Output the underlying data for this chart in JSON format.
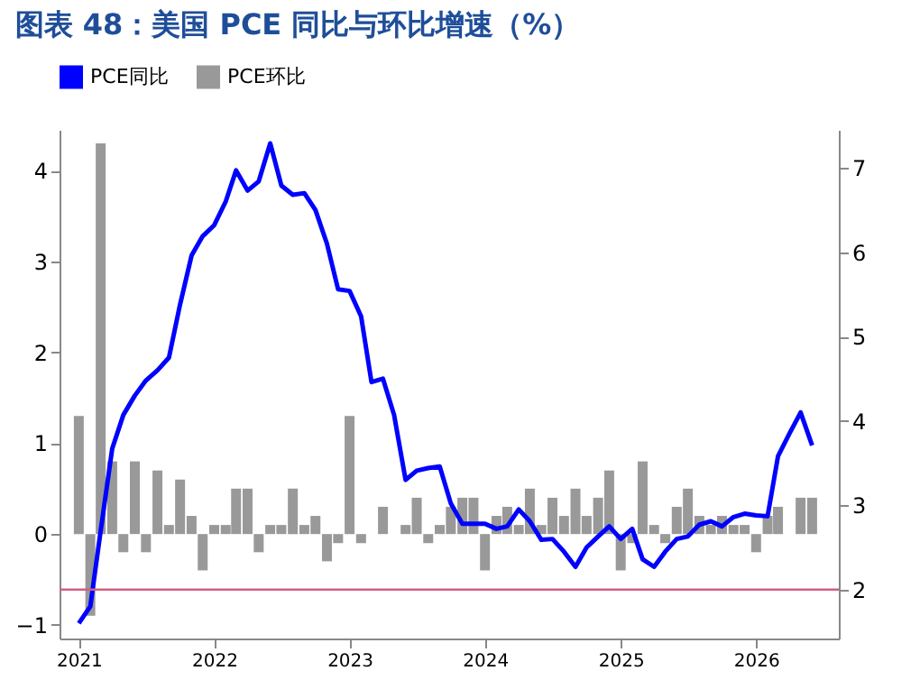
{
  "chart_data": {
    "type": "bar",
    "title": "图表 48：美国 PCE 同比与环比增速（%）",
    "x": [
      "2021-01",
      "2021-02",
      "2021-03",
      "2021-04",
      "2021-05",
      "2021-06",
      "2021-07",
      "2021-08",
      "2021-09",
      "2021-10",
      "2021-11",
      "2021-12",
      "2022-01",
      "2022-02",
      "2022-03",
      "2022-04",
      "2022-05",
      "2022-06",
      "2022-07",
      "2022-08",
      "2022-09",
      "2022-10",
      "2022-11",
      "2022-12",
      "2023-01",
      "2023-02",
      "2023-03",
      "2023-04",
      "2023-05",
      "2023-06",
      "2023-07",
      "2023-08",
      "2023-09",
      "2023-10",
      "2023-11",
      "2023-12",
      "2024-01",
      "2024-02",
      "2024-03",
      "2024-04",
      "2024-05",
      "2024-06",
      "2024-07",
      "2024-08",
      "2024-09",
      "2024-10",
      "2024-11",
      "2024-12",
      "2025-01",
      "2025-02",
      "2025-03",
      "2025-04",
      "2025-05",
      "2025-06",
      "2025-07",
      "2025-08",
      "2025-09",
      "2025-10",
      "2025-11",
      "2025-12",
      "2026-01",
      "2026-02",
      "2026-03",
      "2026-04",
      "2026-05",
      "2026-06"
    ],
    "series": [
      {
        "name": "PCE同比",
        "type": "line",
        "axis": "y2",
        "color": "#0000ff",
        "values": [
          1.6,
          1.8,
          2.7,
          3.67,
          4.07,
          4.3,
          4.48,
          4.6,
          4.75,
          5.38,
          5.96,
          6.19,
          6.32,
          6.6,
          6.97,
          6.73,
          6.84,
          7.29,
          6.79,
          6.68,
          6.7,
          6.5,
          6.1,
          5.56,
          5.54,
          5.24,
          4.46,
          4.5,
          4.07,
          3.3,
          3.41,
          3.44,
          3.46,
          3.02,
          2.78,
          2.78,
          2.78,
          2.72,
          2.75,
          2.95,
          2.81,
          2.59,
          2.6,
          2.45,
          2.27,
          2.5,
          2.63,
          2.75,
          2.6,
          2.72,
          2.36,
          2.27,
          2.45,
          2.6,
          2.63,
          2.77,
          2.81,
          2.75,
          2.86,
          2.9,
          2.88,
          2.87,
          3.58,
          3.85,
          4.1,
          3.71
        ]
      },
      {
        "name": "PCE环比",
        "color": "#999999",
        "values": [
          1.3,
          -0.9,
          4.3,
          0.8,
          -0.2,
          0.8,
          -0.2,
          0.7,
          0.1,
          0.6,
          0.2,
          -0.4,
          0.1,
          0.1,
          0.5,
          0.5,
          -0.2,
          0.1,
          0.1,
          0.5,
          0.1,
          0.2,
          -0.3,
          -0.1,
          1.3,
          -0.1,
          0,
          0.3,
          0,
          0.1,
          0.4,
          -0.1,
          0.1,
          0.3,
          0.4,
          0.4,
          -0.4,
          0.2,
          0.3,
          0.1,
          0.5,
          0.1,
          0.4,
          0.2,
          0.5,
          0.2,
          0.4,
          0.7,
          -0.4,
          -0.1,
          0.8,
          0.1,
          -0.1,
          0.3,
          0.5,
          0.2,
          0.1,
          0.2,
          0.1,
          0.1,
          -0.2,
          0.2,
          0.3,
          0,
          0.4,
          0.4
        ]
      }
    ],
    "xlim": [
      "2020-11-10",
      "2026-08-12"
    ],
    "xticks": [
      "2021",
      "2022",
      "2023",
      "2024",
      "2025",
      "2026"
    ],
    "ylim": [
      -1.15,
      4.45
    ],
    "yticks": [
      -1,
      0,
      1,
      2,
      3,
      4
    ],
    "y2lim": [
      1.42,
      7.45
    ],
    "y2ticks": [
      2,
      3,
      4,
      5,
      6,
      7
    ],
    "ref_lines": [
      {
        "axis": "y2",
        "value": 2,
        "color": "#d06080"
      }
    ],
    "legend": "top",
    "grid": false
  }
}
